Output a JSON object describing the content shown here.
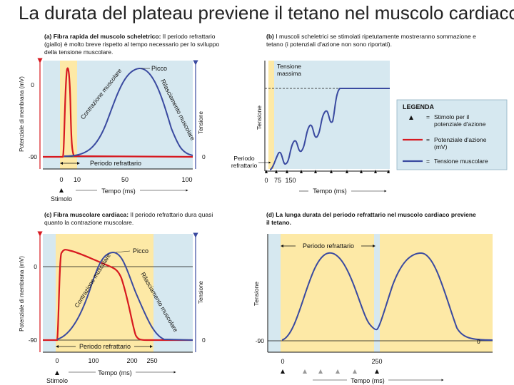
{
  "title": "La durata del plateau previene il tetano nel muscolo cardiaco",
  "colors": {
    "yellow": "#fde9a6",
    "blue": "#d6e8f0",
    "red": "#d71920",
    "navy": "#3a4aa0"
  },
  "panel_a": {
    "caption_bold": "(a) Fibra rapida del muscolo scheletrico:",
    "caption_text": " Il periodo refrattario (giallo) è molto breve rispetto al tempo necessario per lo sviluppo della tensione muscolare.",
    "y_label": "Potenziale di membrana (mV)",
    "y_ticks": [
      "0",
      "-90"
    ],
    "x_ticks": [
      "0",
      "10",
      "50",
      "100"
    ],
    "x_label": "Tempo (ms)",
    "right_label": "Tensione",
    "right_tick": "0",
    "peak_label": "Picco",
    "rise_label": "Contrazione muscolare",
    "fall_label": "Rilasciamento muscolare",
    "refractory_label": "Periodo refrattario",
    "stimulus_label": "Stimolo"
  },
  "panel_b": {
    "caption_bold": "(b)",
    "caption_text": " I muscoli scheletrici se stimolati ripetutamente mostreranno sommazione e tetano (i potenziali d'azione non sono riportati).",
    "y_label": "Tensione",
    "max_label_1": "Tensione",
    "max_label_2": "massima",
    "refractory_label_1": "Periodo",
    "refractory_label_2": "refrattario",
    "x_ticks": [
      "0",
      "75",
      "150"
    ],
    "x_label": "Tempo (ms)"
  },
  "legend": {
    "title": "LEGENDA",
    "stimulus_1": "Stimolo per il",
    "stimulus_2": "potenziale d'azione",
    "ap_1": "Potenziale d'azione",
    "ap_2": "(mV)",
    "tension": "Tensione muscolare",
    "eq": "="
  },
  "panel_c": {
    "caption_bold": "(c) Fibra muscolare cardiaca:",
    "caption_text": " Il periodo refrattario dura quasi quanto la contrazione muscolare.",
    "y_label": "Potenziale di membrana (mV)",
    "y_ticks": [
      "0",
      "-90"
    ],
    "x_ticks": [
      "0",
      "100",
      "200",
      "250"
    ],
    "x_label": "Tempo (ms)",
    "right_label": "Tensione",
    "right_tick": "0",
    "peak_label": "Picco",
    "rise_label": "Contrazione muscolare",
    "fall_label": "Rilasciamento muscolare",
    "refractory_label": "Periodo refrattario",
    "stimulus_label": "Stimolo"
  },
  "panel_d": {
    "caption_bold": "(d) La lunga durata del periodo refrattario nel muscolo cardiaco previene il tetano.",
    "y_label": "Tensione",
    "y_tick": "-90",
    "right_tick": "0",
    "refractory_label": "Periodo refrattario",
    "x_ticks": [
      "0",
      "250"
    ],
    "x_label": "Tempo (ms)"
  }
}
